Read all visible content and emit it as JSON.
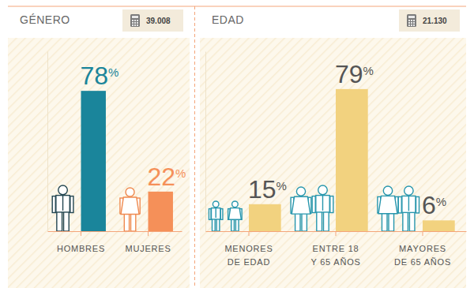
{
  "chart_data": [
    {
      "type": "bar",
      "title": "GÉNERO",
      "annotation": "39.008",
      "categories": [
        "HOMBRES",
        "MUJERES"
      ],
      "values": [
        78,
        22
      ],
      "value_labels": [
        "78%",
        "22%"
      ],
      "colors": [
        "#1a859b",
        "#f59059"
      ],
      "ylim": [
        0,
        100
      ],
      "data_labels": true,
      "tick_labels": "x",
      "grid": false
    },
    {
      "type": "bar",
      "title": "EDAD",
      "annotation": "21.130",
      "categories": [
        "MENORES\nDE EDAD",
        "ENTRE 18\nY 65 AÑOS",
        "MAYORES\nDE 65 AÑOS"
      ],
      "values": [
        15,
        79,
        6
      ],
      "value_labels": [
        "15%",
        "79%",
        "6%"
      ],
      "color": "#f2d27f",
      "ylim": [
        0,
        100
      ],
      "data_labels": true,
      "tick_labels": "x",
      "grid": false
    }
  ]
}
